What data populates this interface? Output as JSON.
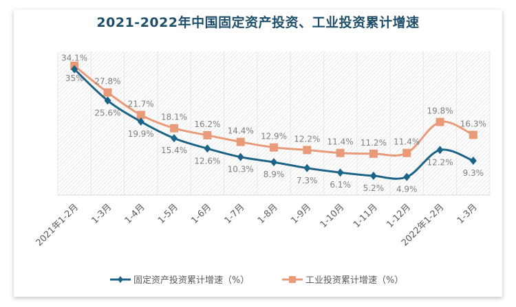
{
  "chart_data": {
    "type": "line",
    "title": "2021-2022年中国固定资产投资、工业投资累计增速",
    "categories": [
      "2021年1-2月",
      "1-3月",
      "1-4月",
      "1-5月",
      "1-6月",
      "1-7月",
      "1-8月",
      "1-9月",
      "1-10月",
      "1-11月",
      "1-12月",
      "2022年1-2月",
      "1-3月"
    ],
    "series": [
      {
        "name": "固定资产投资累计增速（%）",
        "color": "#1b6487",
        "marker": "diamond",
        "values": [
          34.1,
          25.6,
          19.9,
          15.4,
          12.6,
          10.3,
          8.9,
          7.3,
          6.1,
          5.2,
          4.9,
          12.2,
          9.3
        ],
        "labels": [
          "34.1%",
          "25.6%",
          "19.9%",
          "15.4%",
          "12.6%",
          "10.3%",
          "8.9%",
          "7.3%",
          "6.1%",
          "5.2%",
          "4.9%",
          "12.2%",
          "9.3%"
        ]
      },
      {
        "name": "工业投资累计增速（%）",
        "color": "#e99a78",
        "marker": "square",
        "values": [
          35,
          27.8,
          21.7,
          18.1,
          16.2,
          14.4,
          12.9,
          12.2,
          11.4,
          11.2,
          11.4,
          19.8,
          16.3
        ],
        "labels": [
          "35%",
          "27.8%",
          "21.7%",
          "18.1%",
          "16.2%",
          "14.4%",
          "12.9%",
          "12.2%",
          "11.4%",
          "11.2%",
          "11.4%",
          "19.8%",
          "16.3%"
        ]
      }
    ],
    "ylim": [
      0,
      40
    ],
    "y_axis_visible": false,
    "grid": "vertical",
    "smooth": true,
    "legend": "bottom"
  }
}
